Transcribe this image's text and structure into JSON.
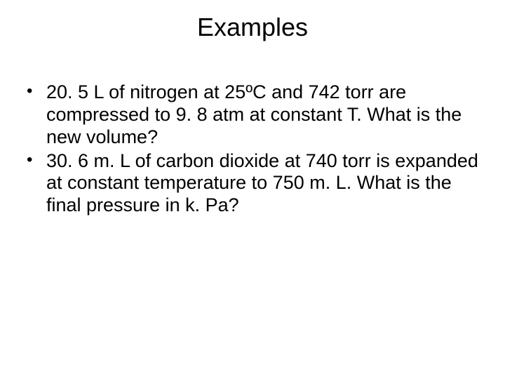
{
  "slide": {
    "title": "Examples",
    "bullets": [
      "20. 5 L of nitrogen at 25ºC and 742 torr are compressed to 9. 8 atm at constant T. What is the new volume?",
      "30. 6 m. L of carbon dioxide at  740 torr is expanded at constant temperature to 750 m. L. What is the final pressure in k. Pa?"
    ],
    "title_fontsize": 36,
    "body_fontsize": 27,
    "text_color": "#000000",
    "background_color": "#ffffff"
  }
}
